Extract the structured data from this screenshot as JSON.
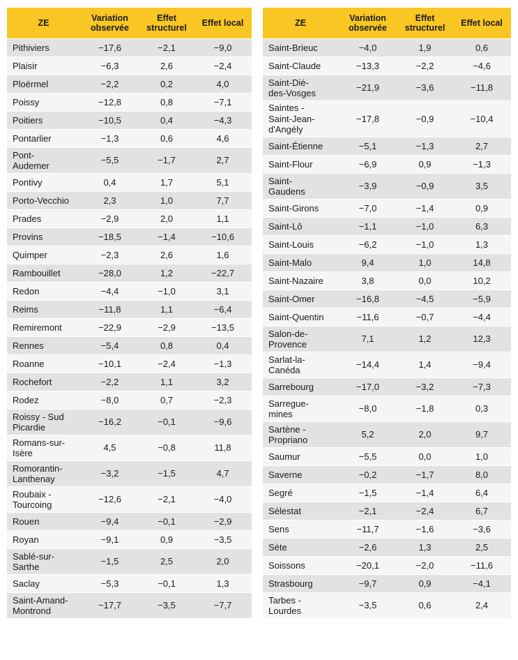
{
  "headers": {
    "ze": "ZE",
    "variation": "Variation observée",
    "structurel": "Effet structurel",
    "local": "Effet local"
  },
  "left_rows": [
    {
      "ze": "Pithiviers",
      "variation": "−17,6",
      "structurel": "−2,1",
      "local": "−9,0"
    },
    {
      "ze": "Plaisir",
      "variation": "−6,3",
      "structurel": "2,6",
      "local": "−2,4"
    },
    {
      "ze": "Ploërmel",
      "variation": "−2,2",
      "structurel": "0,2",
      "local": "4,0"
    },
    {
      "ze": "Poissy",
      "variation": "−12,8",
      "structurel": "0,8",
      "local": "−7,1"
    },
    {
      "ze": "Poitiers",
      "variation": "−10,5",
      "structurel": "0,4",
      "local": "−4,3"
    },
    {
      "ze": "Pontarlier",
      "variation": "−1,3",
      "structurel": "0,6",
      "local": "4,6"
    },
    {
      "ze": "Pont-\nAudemer",
      "variation": "−5,5",
      "structurel": "−1,7",
      "local": "2,7"
    },
    {
      "ze": "Pontivy",
      "variation": "0,4",
      "structurel": "1,7",
      "local": "5,1"
    },
    {
      "ze": "Porto-Vecchio",
      "variation": "2,3",
      "structurel": "1,0",
      "local": "7,7"
    },
    {
      "ze": "Prades",
      "variation": "−2,9",
      "structurel": "2,0",
      "local": "1,1"
    },
    {
      "ze": "Provins",
      "variation": "−18,5",
      "structurel": "−1,4",
      "local": "−10,6"
    },
    {
      "ze": "Quimper",
      "variation": "−2,3",
      "structurel": "2,6",
      "local": "1,6"
    },
    {
      "ze": "Rambouillet",
      "variation": "−28,0",
      "structurel": "1,2",
      "local": "−22,7"
    },
    {
      "ze": "Redon",
      "variation": "−4,4",
      "structurel": "−1,0",
      "local": "3,1"
    },
    {
      "ze": "Reims",
      "variation": "−11,8",
      "structurel": "1,1",
      "local": "−6,4"
    },
    {
      "ze": "Remiremont",
      "variation": "−22,9",
      "structurel": "−2,9",
      "local": "−13,5"
    },
    {
      "ze": "Rennes",
      "variation": "−5,4",
      "structurel": "0,8",
      "local": "0,4"
    },
    {
      "ze": "Roanne",
      "variation": "−10,1",
      "structurel": "−2,4",
      "local": "−1,3"
    },
    {
      "ze": "Rochefort",
      "variation": "−2,2",
      "structurel": "1,1",
      "local": "3,2"
    },
    {
      "ze": "Rodez",
      "variation": "−8,0",
      "structurel": "0,7",
      "local": "−2,3"
    },
    {
      "ze": "Roissy - Sud\nPicardie",
      "variation": "−16,2",
      "structurel": "−0,1",
      "local": "−9,6"
    },
    {
      "ze": "Romans-sur-\nIsère",
      "variation": "4,5",
      "structurel": "−0,8",
      "local": "11,8"
    },
    {
      "ze": "Romorantin-\nLanthenay",
      "variation": "−3,2",
      "structurel": "−1,5",
      "local": "4,7"
    },
    {
      "ze": "Roubaix -\nTourcoing",
      "variation": "−12,6",
      "structurel": "−2,1",
      "local": "−4,0"
    },
    {
      "ze": "Rouen",
      "variation": "−9,4",
      "structurel": "−0,1",
      "local": "−2,9"
    },
    {
      "ze": "Royan",
      "variation": "−9,1",
      "structurel": "0,9",
      "local": "−3,5"
    },
    {
      "ze": "Sablé-sur-\nSarthe",
      "variation": "−1,5",
      "structurel": "2,5",
      "local": "2,0"
    },
    {
      "ze": "Saclay",
      "variation": "−5,3",
      "structurel": "−0,1",
      "local": "1,3"
    },
    {
      "ze": "Saint-Amand-\nMontrond",
      "variation": "−17,7",
      "structurel": "−3,5",
      "local": "−7,7"
    }
  ],
  "right_rows": [
    {
      "ze": "Saint-Brieuc",
      "variation": "−4,0",
      "structurel": "1,9",
      "local": "0,6"
    },
    {
      "ze": "Saint-Claude",
      "variation": "−13,3",
      "structurel": "−2,2",
      "local": "−4,6"
    },
    {
      "ze": "Saint-Dié-\ndes-Vosges",
      "variation": "−21,9",
      "structurel": "−3,6",
      "local": "−11,8"
    },
    {
      "ze": "Saintes -\nSaint-Jean-\nd'Angély",
      "variation": "−17,8",
      "structurel": "−0,9",
      "local": "−10,4"
    },
    {
      "ze": "Saint-Étienne",
      "variation": "−5,1",
      "structurel": "−1,3",
      "local": "2,7"
    },
    {
      "ze": "Saint-Flour",
      "variation": "−6,9",
      "structurel": "0,9",
      "local": "−1,3"
    },
    {
      "ze": "Saint-\nGaudens",
      "variation": "−3,9",
      "structurel": "−0,9",
      "local": "3,5"
    },
    {
      "ze": "Saint-Girons",
      "variation": "−7,0",
      "structurel": "−1,4",
      "local": "0,9"
    },
    {
      "ze": "Saint-Lô",
      "variation": "−1,1",
      "structurel": "−1,0",
      "local": "6,3"
    },
    {
      "ze": "Saint-Louis",
      "variation": "−6,2",
      "structurel": "−1,0",
      "local": "1,3"
    },
    {
      "ze": "Saint-Malo",
      "variation": "9,4",
      "structurel": "1,0",
      "local": "14,8"
    },
    {
      "ze": "Saint-Nazaire",
      "variation": "3,8",
      "structurel": "0,0",
      "local": "10,2"
    },
    {
      "ze": "Saint-Omer",
      "variation": "−16,8",
      "structurel": "−4,5",
      "local": "−5,9"
    },
    {
      "ze": "Saint-Quentin",
      "variation": "−11,6",
      "structurel": "−0,7",
      "local": "−4,4"
    },
    {
      "ze": "Salon-de-\nProvence",
      "variation": "7,1",
      "structurel": "1,2",
      "local": "12,3"
    },
    {
      "ze": "Sarlat-la-\nCanéda",
      "variation": "−14,4",
      "structurel": "1,4",
      "local": "−9,4"
    },
    {
      "ze": "Sarrebourg",
      "variation": "−17,0",
      "structurel": "−3,2",
      "local": "−7,3"
    },
    {
      "ze": "Sarregue-\nmines",
      "variation": "−8,0",
      "structurel": "−1,8",
      "local": "0,3"
    },
    {
      "ze": "Sartène -\nPropriano",
      "variation": "5,2",
      "structurel": "2,0",
      "local": "9,7"
    },
    {
      "ze": "Saumur",
      "variation": "−5,5",
      "structurel": "0,0",
      "local": "1,0"
    },
    {
      "ze": "Saverne",
      "variation": "−0,2",
      "structurel": "−1,7",
      "local": "8,0"
    },
    {
      "ze": "Segré",
      "variation": "−1,5",
      "structurel": "−1,4",
      "local": "6,4"
    },
    {
      "ze": "Sélestat",
      "variation": "−2,1",
      "structurel": "−2,4",
      "local": "6,7"
    },
    {
      "ze": "Sens",
      "variation": "−11,7",
      "structurel": "−1,6",
      "local": "−3,6"
    },
    {
      "ze": "Sète",
      "variation": "−2,6",
      "structurel": "1,3",
      "local": "2,5"
    },
    {
      "ze": "Soissons",
      "variation": "−20,1",
      "structurel": "−2,0",
      "local": "−11,6"
    },
    {
      "ze": "Strasbourg",
      "variation": "−9,7",
      "structurel": "0,9",
      "local": "−4,1"
    },
    {
      "ze": "Tarbes -\nLourdes",
      "variation": "−3,5",
      "structurel": "0,6",
      "local": "2,4"
    }
  ]
}
